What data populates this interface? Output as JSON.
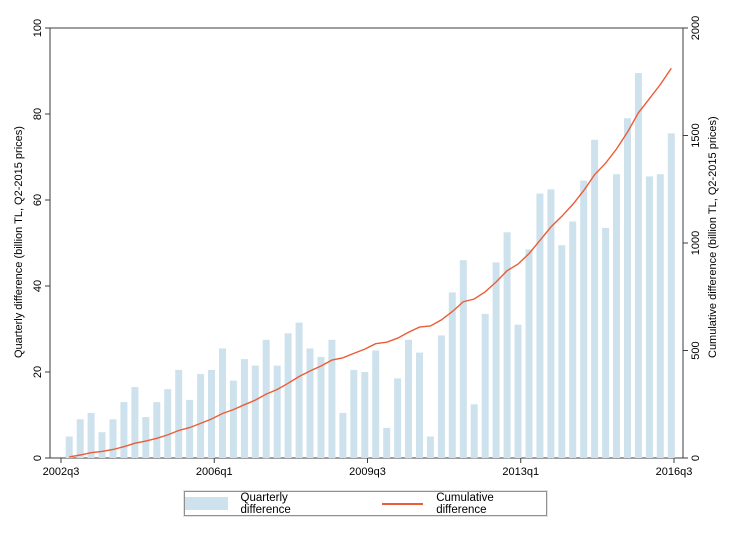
{
  "chart_data": {
    "type": "bar",
    "combo": "bar+line dual axis",
    "title": "",
    "x_axis": {
      "tick_labels": [
        "2002q3",
        "2006q1",
        "2009q3",
        "2013q1",
        "2016q3"
      ],
      "tick_positions_quarters": [
        0,
        14,
        28,
        42,
        56
      ],
      "range_quarters": [
        0,
        56
      ]
    },
    "left_axis": {
      "label": "Quarterly difference (billion TL, Q2-2015 prices)",
      "ticks": [
        0,
        20,
        40,
        60,
        80,
        100
      ],
      "range": [
        0,
        100
      ]
    },
    "right_axis": {
      "label": "Cumulative difference (billion TL, Q2-2015 prices)",
      "ticks": [
        0,
        500,
        1000,
        1500,
        2000
      ],
      "range": [
        0,
        2000
      ]
    },
    "categories": [
      "2002q4",
      "2003q1",
      "2003q2",
      "2003q3",
      "2003q4",
      "2004q1",
      "2004q2",
      "2004q3",
      "2004q4",
      "2005q1",
      "2005q2",
      "2005q3",
      "2005q4",
      "2006q1",
      "2006q2",
      "2006q3",
      "2006q4",
      "2007q1",
      "2007q2",
      "2007q3",
      "2007q4",
      "2008q1",
      "2008q2",
      "2008q3",
      "2008q4",
      "2009q1",
      "2009q2",
      "2009q3",
      "2009q4",
      "2010q1",
      "2010q2",
      "2010q3",
      "2010q4",
      "2011q1",
      "2011q2",
      "2011q3",
      "2011q4",
      "2012q1",
      "2012q2",
      "2012q3",
      "2012q4",
      "2013q1",
      "2013q2",
      "2013q3",
      "2013q4",
      "2014q1",
      "2014q2",
      "2014q3",
      "2014q4",
      "2015q1",
      "2015q2",
      "2015q3",
      "2015q4",
      "2016q1",
      "2016q2",
      "2016q3"
    ],
    "series": [
      {
        "name": "Quarterly difference",
        "type": "bar",
        "axis": "left",
        "color": "#cde2ec",
        "values": [
          5,
          9,
          10.5,
          6,
          9,
          13,
          16.5,
          9.5,
          13,
          16,
          20.5,
          13.5,
          19.5,
          20.5,
          25.5,
          18,
          23,
          21.5,
          27.5,
          21.5,
          29,
          31.5,
          25.5,
          23.5,
          27.5,
          10.5,
          20.5,
          20,
          25,
          7,
          18.5,
          27.5,
          24.5,
          5,
          28.5,
          38.5,
          46,
          12.5,
          33.5,
          45.5,
          52.5,
          31,
          48.5,
          61.5,
          62.5,
          49.5,
          55,
          64.5,
          74,
          53.5,
          66,
          79,
          89.5,
          65.5,
          66,
          75.5
        ]
      },
      {
        "name": "Cumulative difference",
        "type": "line",
        "axis": "right",
        "color": "#ec5c36",
        "values": [
          5,
          14,
          24.5,
          30.5,
          39.5,
          52.5,
          69,
          78.5,
          91.5,
          107.5,
          128,
          141.5,
          161,
          181.5,
          207,
          225,
          248,
          269.5,
          297,
          318.5,
          347.5,
          379,
          404.5,
          428,
          455.5,
          466,
          486.5,
          506.5,
          531.5,
          538.5,
          557,
          584.5,
          609,
          614,
          642.5,
          681,
          727,
          739.5,
          773,
          818.5,
          871,
          902,
          950.5,
          1012,
          1074.5,
          1124,
          1179,
          1243.5,
          1317.5,
          1371,
          1437,
          1516,
          1605.5,
          1671,
          1737,
          1812.5
        ]
      }
    ],
    "legend": {
      "position": "bottom",
      "entries": [
        {
          "label": "Quarterly difference",
          "marker": "filled-square",
          "color": "#cde2ec"
        },
        {
          "label": "Cumulative difference",
          "marker": "line",
          "color": "#ec5c36"
        }
      ]
    },
    "style": {
      "frame_color": "#3c3c3c",
      "background": "#ffffff",
      "grid": "off"
    }
  }
}
